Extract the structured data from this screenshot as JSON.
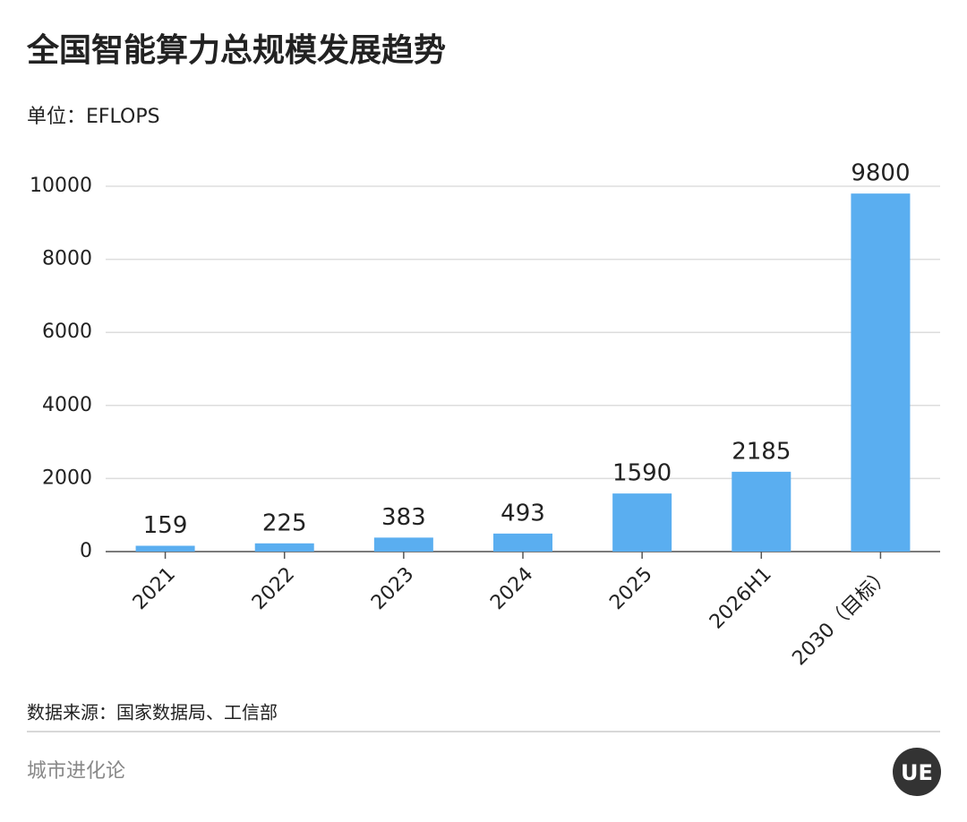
{
  "chart_data": {
    "type": "bar",
    "title": "全国智能算力总规模发展趋势",
    "subtitle": "单位：EFLOPS",
    "categories": [
      "2021",
      "2022",
      "2023",
      "2024",
      "2025",
      "2026H1",
      "2030（目标）"
    ],
    "values": [
      159,
      225,
      383,
      493,
      1590,
      2185,
      9800
    ],
    "color": "#5aaef0",
    "ylim": [
      0,
      10000
    ],
    "yticks": [
      0,
      2000,
      4000,
      6000,
      8000,
      10000
    ],
    "grid": true,
    "source": "数据来源：国家数据局、工信部",
    "footer": "城市进化论",
    "logo": "UE"
  }
}
